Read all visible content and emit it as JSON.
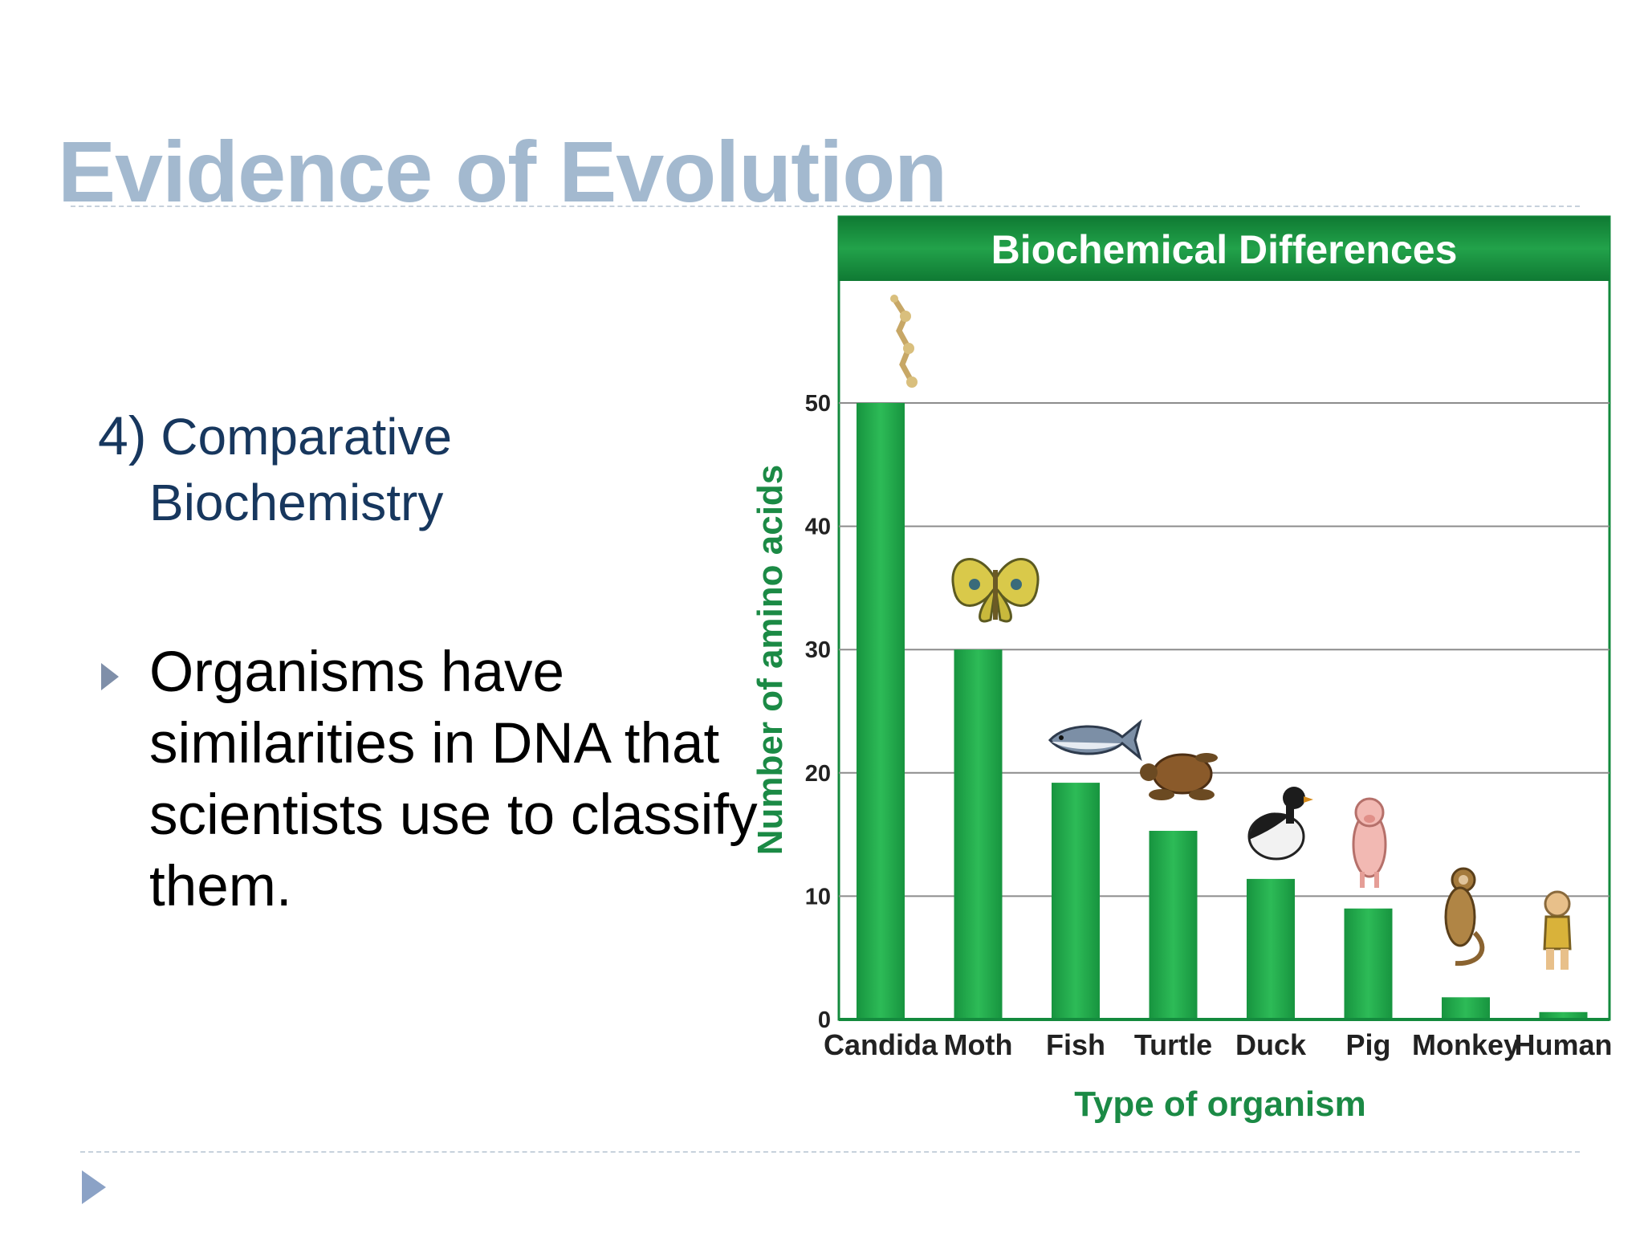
{
  "slide": {
    "title": "Evidence of Evolution",
    "subheading_number": "4)",
    "subheading_line1": "Comparative",
    "subheading_line2": "Biochemistry",
    "bullet_text": "Organisms have similarities in DNA that scientists use to classify them."
  },
  "colors": {
    "title": "#a3b9cf",
    "subheading": "#17375e",
    "bar": "#1fa24a",
    "header": "#138a3d",
    "axis_label": "#1b8a45"
  },
  "icons": [
    "candida-icon",
    "moth-icon",
    "fish-icon",
    "turtle-icon",
    "duck-icon",
    "pig-icon",
    "monkey-icon",
    "human-icon"
  ],
  "chart_data": {
    "type": "bar",
    "title": "Biochemical Differences",
    "xlabel": "Type of organism",
    "ylabel": "Number of amino acids",
    "categories": [
      "Candida",
      "Moth",
      "Fish",
      "Turtle",
      "Duck",
      "Pig",
      "Monkey",
      "Human"
    ],
    "values": [
      50,
      30,
      19.2,
      15.3,
      11.4,
      9,
      1.8,
      0.6
    ],
    "ylim": [
      0,
      60
    ],
    "yticks": [
      0,
      10,
      20,
      30,
      40,
      50
    ],
    "grid": true,
    "legend": "none"
  }
}
